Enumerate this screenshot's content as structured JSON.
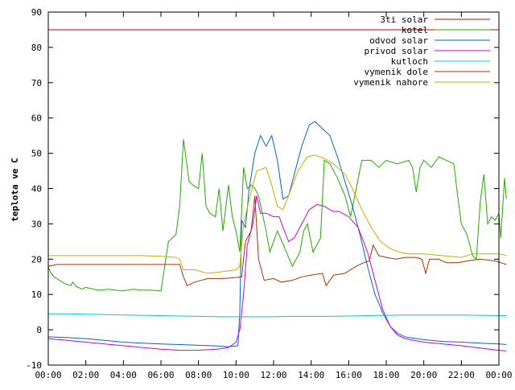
{
  "chart_data": {
    "type": "line",
    "title": "",
    "xlabel": "",
    "ylabel": "teplota ve C",
    "xlim": [
      0,
      24
    ],
    "ylim": [
      -10,
      90
    ],
    "x_ticks": [
      "00:00",
      "02:00",
      "04:00",
      "06:00",
      "08:00",
      "10:00",
      "12:00",
      "14:00",
      "16:00",
      "18:00",
      "20:00",
      "22:00",
      "00:00"
    ],
    "y_ticks": [
      "-10",
      "0",
      "10",
      "20",
      "30",
      "40",
      "50",
      "60",
      "70",
      "80",
      "90"
    ],
    "grid": false,
    "legend_position": "top-right",
    "series": [
      {
        "name": "3ti solar",
        "color": "#cc0000",
        "points": [
          [
            0,
            85
          ],
          [
            24,
            85
          ]
        ]
      },
      {
        "name": "kotel",
        "color": "#22aa00",
        "points": [
          [
            0,
            17.8
          ],
          [
            0.1,
            16.5
          ],
          [
            0.3,
            15
          ],
          [
            0.6,
            14
          ],
          [
            0.9,
            13
          ],
          [
            1.2,
            12.5
          ],
          [
            1.3,
            13.5
          ],
          [
            1.5,
            12.2
          ],
          [
            1.8,
            11.5
          ],
          [
            2,
            12
          ],
          [
            2.4,
            11.5
          ],
          [
            2.7,
            11.2
          ],
          [
            3.2,
            11.5
          ],
          [
            3.6,
            11.2
          ],
          [
            4,
            11
          ],
          [
            4.5,
            11.5
          ],
          [
            5,
            11.2
          ],
          [
            5.5,
            11.2
          ],
          [
            6,
            11
          ],
          [
            6.2,
            18
          ],
          [
            6.4,
            25
          ],
          [
            6.6,
            26
          ],
          [
            6.8,
            27
          ],
          [
            7,
            35
          ],
          [
            7.2,
            54
          ],
          [
            7.3,
            50
          ],
          [
            7.5,
            42
          ],
          [
            7.7,
            41
          ],
          [
            8,
            40
          ],
          [
            8.2,
            50
          ],
          [
            8.4,
            35
          ],
          [
            8.6,
            33
          ],
          [
            8.9,
            32
          ],
          [
            9.1,
            40
          ],
          [
            9.3,
            28
          ],
          [
            9.6,
            41
          ],
          [
            9.8,
            32
          ],
          [
            10,
            28
          ],
          [
            10.2,
            22
          ],
          [
            10.4,
            46
          ],
          [
            10.6,
            40
          ],
          [
            10.8,
            41
          ],
          [
            11,
            40
          ],
          [
            11.2,
            38
          ],
          [
            11.4,
            33
          ],
          [
            11.6,
            28
          ],
          [
            11.8,
            22
          ],
          [
            12.2,
            28
          ],
          [
            12.6,
            23
          ],
          [
            13,
            18
          ],
          [
            13.4,
            22
          ],
          [
            13.6,
            28
          ],
          [
            13.8,
            30
          ],
          [
            14.1,
            22
          ],
          [
            14.5,
            26
          ],
          [
            14.7,
            48
          ],
          [
            15,
            47
          ],
          [
            15.4,
            43
          ],
          [
            15.8,
            38
          ],
          [
            16.1,
            32
          ],
          [
            16.4,
            40
          ],
          [
            16.7,
            48
          ],
          [
            17.2,
            48
          ],
          [
            17.6,
            46
          ],
          [
            17.8,
            47
          ],
          [
            18,
            48
          ],
          [
            18.6,
            47
          ],
          [
            19.2,
            48
          ],
          [
            19.4,
            46
          ],
          [
            19.6,
            39
          ],
          [
            19.8,
            46
          ],
          [
            20,
            48
          ],
          [
            20.4,
            46
          ],
          [
            20.8,
            49
          ],
          [
            21.2,
            48
          ],
          [
            21.6,
            47
          ],
          [
            21.8,
            38
          ],
          [
            22,
            30
          ],
          [
            22.3,
            27
          ],
          [
            22.6,
            21
          ],
          [
            22.8,
            20
          ],
          [
            23,
            36
          ],
          [
            23.2,
            44
          ],
          [
            23.4,
            30
          ],
          [
            23.6,
            32
          ],
          [
            23.8,
            31
          ],
          [
            24,
            33
          ],
          [
            24.1,
            26
          ],
          [
            24.3,
            43
          ],
          [
            24.4,
            37
          ]
        ]
      },
      {
        "name": "odvod solar",
        "color": "#0066cc",
        "points": [
          [
            0,
            -2
          ],
          [
            1,
            -2.2
          ],
          [
            2,
            -2.5
          ],
          [
            3,
            -3
          ],
          [
            4,
            -3.5
          ],
          [
            5,
            -3.8
          ],
          [
            6,
            -4
          ],
          [
            7,
            -4.2
          ],
          [
            8,
            -4.4
          ],
          [
            9,
            -4.6
          ],
          [
            9.6,
            -4.8
          ],
          [
            10.1,
            -4.5
          ],
          [
            10.2,
            5
          ],
          [
            10.3,
            31
          ],
          [
            10.5,
            29
          ],
          [
            10.7,
            40
          ],
          [
            11,
            50
          ],
          [
            11.3,
            55
          ],
          [
            11.6,
            52
          ],
          [
            11.9,
            55
          ],
          [
            12.2,
            48
          ],
          [
            12.5,
            37
          ],
          [
            12.8,
            38
          ],
          [
            13.1,
            44
          ],
          [
            13.5,
            52
          ],
          [
            13.9,
            58
          ],
          [
            14.2,
            59
          ],
          [
            14.6,
            57
          ],
          [
            15,
            55
          ],
          [
            15.4,
            49
          ],
          [
            15.8,
            42
          ],
          [
            16.2,
            35
          ],
          [
            16.6,
            27
          ],
          [
            17,
            18
          ],
          [
            17.4,
            10
          ],
          [
            17.8,
            5
          ],
          [
            18.2,
            1
          ],
          [
            18.6,
            -1
          ],
          [
            19,
            -2
          ],
          [
            20,
            -2.8
          ],
          [
            21,
            -3.3
          ],
          [
            22,
            -3.5
          ],
          [
            23,
            -3.8
          ],
          [
            24,
            -4
          ],
          [
            24.4,
            -4.2
          ]
        ]
      },
      {
        "name": "privod solar",
        "color": "#cc00cc",
        "points": [
          [
            0,
            -2.5
          ],
          [
            1,
            -3
          ],
          [
            2,
            -3.5
          ],
          [
            3,
            -4
          ],
          [
            4,
            -4.5
          ],
          [
            5,
            -5
          ],
          [
            6,
            -5.5
          ],
          [
            7,
            -5.8
          ],
          [
            8,
            -5.8
          ],
          [
            9,
            -5.5
          ],
          [
            9.6,
            -5
          ],
          [
            10,
            -3.5
          ],
          [
            10.2,
            0
          ],
          [
            10.4,
            10
          ],
          [
            10.6,
            24
          ],
          [
            10.9,
            30
          ],
          [
            11.1,
            38
          ],
          [
            11.3,
            33
          ],
          [
            11.6,
            33
          ],
          [
            12,
            32
          ],
          [
            12.3,
            32
          ],
          [
            12.5,
            29
          ],
          [
            12.8,
            25
          ],
          [
            13.1,
            26
          ],
          [
            13.5,
            30
          ],
          [
            13.9,
            34
          ],
          [
            14.3,
            35.5
          ],
          [
            14.7,
            35
          ],
          [
            15,
            34
          ],
          [
            15.2,
            33.5
          ],
          [
            15.5,
            33.5
          ],
          [
            16,
            32
          ],
          [
            16.5,
            29
          ],
          [
            17,
            22
          ],
          [
            17.4,
            14
          ],
          [
            17.8,
            6
          ],
          [
            18.2,
            1
          ],
          [
            18.6,
            -1.5
          ],
          [
            19,
            -2.5
          ],
          [
            20,
            -3.5
          ],
          [
            21,
            -4
          ],
          [
            22,
            -4.5
          ],
          [
            23,
            -5.2
          ],
          [
            24,
            -5.8
          ],
          [
            24.4,
            -6
          ]
        ]
      },
      {
        "name": "kutloch",
        "color": "#00cccc",
        "points": [
          [
            0,
            4.5
          ],
          [
            1,
            4.5
          ],
          [
            2,
            4.4
          ],
          [
            3,
            4.3
          ],
          [
            4,
            4.2
          ],
          [
            5,
            4.1
          ],
          [
            6,
            4
          ],
          [
            7,
            3.9
          ],
          [
            8,
            3.8
          ],
          [
            9,
            3.7
          ],
          [
            10,
            3.7
          ],
          [
            11,
            3.7
          ],
          [
            12,
            3.7
          ],
          [
            13,
            3.8
          ],
          [
            14,
            3.8
          ],
          [
            15,
            3.8
          ],
          [
            16,
            3.9
          ],
          [
            17,
            4
          ],
          [
            18,
            4.1
          ],
          [
            19,
            4.2
          ],
          [
            20,
            4.2
          ],
          [
            21,
            4.2
          ],
          [
            22,
            4.2
          ],
          [
            23,
            4.1
          ],
          [
            24,
            4
          ],
          [
            24.4,
            4
          ]
        ]
      },
      {
        "name": "vymenik dole",
        "color": "#aa3300",
        "points": [
          [
            0,
            18
          ],
          [
            0.5,
            18.5
          ],
          [
            1,
            18.5
          ],
          [
            2,
            18.5
          ],
          [
            3,
            18.5
          ],
          [
            4,
            18.5
          ],
          [
            5,
            18.5
          ],
          [
            6,
            18.5
          ],
          [
            6.5,
            18.5
          ],
          [
            7,
            18.5
          ],
          [
            7.2,
            15
          ],
          [
            7.4,
            12.5
          ],
          [
            7.8,
            13.5
          ],
          [
            8.5,
            14.5
          ],
          [
            9.3,
            14.5
          ],
          [
            10,
            14.8
          ],
          [
            10.3,
            15
          ],
          [
            10.5,
            25
          ],
          [
            10.8,
            28
          ],
          [
            11,
            38
          ],
          [
            11.2,
            20
          ],
          [
            11.5,
            14
          ],
          [
            12,
            14.5
          ],
          [
            12.4,
            13.5
          ],
          [
            13,
            14
          ],
          [
            13.5,
            15
          ],
          [
            14,
            15.5
          ],
          [
            14.6,
            16
          ],
          [
            14.8,
            12.5
          ],
          [
            15.2,
            15.5
          ],
          [
            15.8,
            16
          ],
          [
            16.4,
            18
          ],
          [
            16.8,
            19
          ],
          [
            17.1,
            19.5
          ],
          [
            17.3,
            24
          ],
          [
            17.6,
            21
          ],
          [
            18,
            20.5
          ],
          [
            18.5,
            20
          ],
          [
            19,
            20.5
          ],
          [
            19.6,
            20.5
          ],
          [
            19.9,
            20
          ],
          [
            20.1,
            16
          ],
          [
            20.3,
            20
          ],
          [
            20.8,
            20
          ],
          [
            21.2,
            19
          ],
          [
            21.8,
            19
          ],
          [
            22.3,
            19.5
          ],
          [
            23,
            20
          ],
          [
            23.8,
            19.5
          ],
          [
            24.4,
            18.5
          ]
        ]
      },
      {
        "name": "vymenik nahore",
        "color": "#ccaa00",
        "points": [
          [
            0,
            21
          ],
          [
            1,
            21
          ],
          [
            2,
            21
          ],
          [
            3,
            21
          ],
          [
            4,
            21
          ],
          [
            5,
            21
          ],
          [
            6,
            20.8
          ],
          [
            6.8,
            20.5
          ],
          [
            7,
            20
          ],
          [
            7.2,
            17
          ],
          [
            7.8,
            17
          ],
          [
            8.5,
            16
          ],
          [
            9.3,
            16.5
          ],
          [
            10,
            17
          ],
          [
            10.2,
            18
          ],
          [
            10.4,
            30
          ],
          [
            10.7,
            37
          ],
          [
            11.1,
            45
          ],
          [
            11.6,
            46
          ],
          [
            11.9,
            41
          ],
          [
            12.2,
            35
          ],
          [
            12.5,
            34
          ],
          [
            12.8,
            38
          ],
          [
            13.3,
            45
          ],
          [
            13.8,
            49
          ],
          [
            14.2,
            49.5
          ],
          [
            14.7,
            48.5
          ],
          [
            15.2,
            47
          ],
          [
            15.8,
            44
          ],
          [
            16.2,
            40
          ],
          [
            16.7,
            34
          ],
          [
            17.2,
            29
          ],
          [
            17.7,
            25
          ],
          [
            18.2,
            23
          ],
          [
            18.7,
            22
          ],
          [
            19.2,
            21.5
          ],
          [
            20,
            21.5
          ],
          [
            21,
            21
          ],
          [
            22,
            20.5
          ],
          [
            22.6,
            21.5
          ],
          [
            23.4,
            21.5
          ],
          [
            24,
            21.5
          ],
          [
            24.4,
            21
          ]
        ]
      }
    ]
  }
}
